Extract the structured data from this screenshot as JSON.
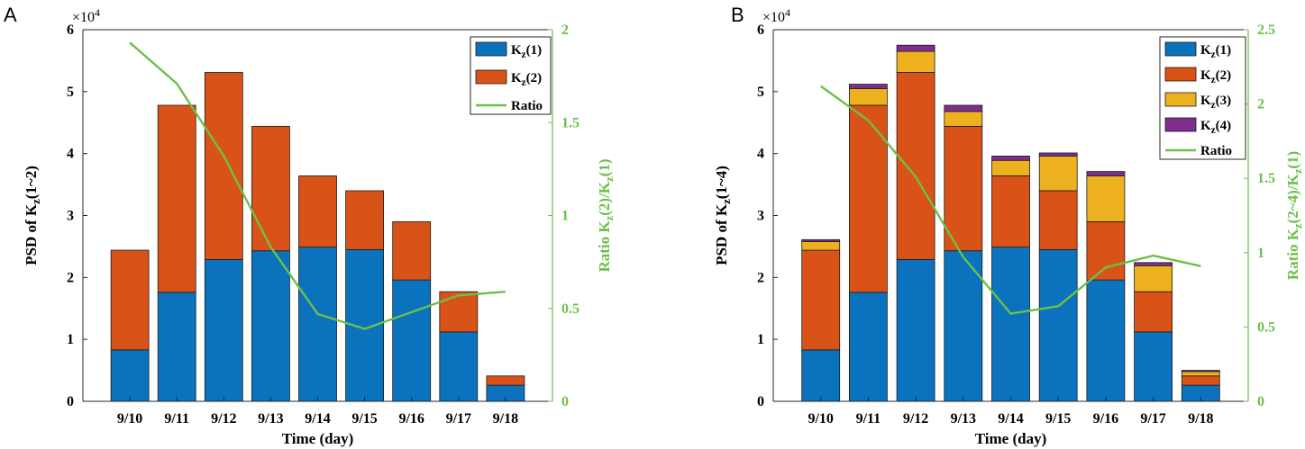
{
  "colors": {
    "k1": "#0b72bd",
    "k2": "#d95319",
    "k3": "#edb120",
    "k4": "#7e2f8e",
    "ratio": "#6cc04a"
  },
  "chart_data": [
    {
      "type": "bar",
      "stacked": true,
      "panel_label": "A",
      "categories": [
        "9/10",
        "9/11",
        "9/12",
        "9/13",
        "9/14",
        "9/15",
        "9/16",
        "9/17",
        "9/18"
      ],
      "xlabel": "Time (day)",
      "ylabel": "PSD of K_z(1~2)",
      "ylim": [
        0,
        6
      ],
      "yticks": [
        "0",
        "1",
        "2",
        "3",
        "4",
        "5",
        "6"
      ],
      "y_scale_label": "×10^4",
      "series": [
        {
          "name": "K_z(1)",
          "key": "k1",
          "values": [
            0.83,
            1.76,
            2.29,
            2.43,
            2.49,
            2.45,
            1.96,
            1.12,
            0.26
          ]
        },
        {
          "name": "K_z(2)",
          "key": "k2",
          "values": [
            1.61,
            3.02,
            3.02,
            2.01,
            1.15,
            0.95,
            0.94,
            0.65,
            0.15
          ]
        }
      ],
      "ratio": {
        "name": "Ratio",
        "ylabel": "Ratio K_z(2)/K_z(1)",
        "ylim": [
          0,
          2
        ],
        "yticks": [
          "0",
          "0.5",
          "1",
          "1.5",
          "2"
        ],
        "values": [
          1.93,
          1.71,
          1.32,
          0.83,
          0.47,
          0.39,
          0.48,
          0.57,
          0.59
        ]
      }
    },
    {
      "type": "bar",
      "stacked": true,
      "panel_label": "B",
      "categories": [
        "9/10",
        "9/11",
        "9/12",
        "9/13",
        "9/14",
        "9/15",
        "9/16",
        "9/17",
        "9/18"
      ],
      "xlabel": "Time (day)",
      "ylabel": "PSD of K_z(1~4)",
      "ylim": [
        0,
        6
      ],
      "yticks": [
        "0",
        "1",
        "2",
        "3",
        "4",
        "5",
        "6"
      ],
      "y_scale_label": "×10^4",
      "series": [
        {
          "name": "K_z(1)",
          "key": "k1",
          "values": [
            0.83,
            1.76,
            2.29,
            2.43,
            2.49,
            2.45,
            1.96,
            1.12,
            0.26
          ]
        },
        {
          "name": "K_z(2)",
          "key": "k2",
          "values": [
            1.61,
            3.02,
            3.02,
            2.01,
            1.15,
            0.95,
            0.94,
            0.65,
            0.15
          ]
        },
        {
          "name": "K_z(3)",
          "key": "k3",
          "values": [
            0.14,
            0.27,
            0.34,
            0.24,
            0.25,
            0.56,
            0.74,
            0.42,
            0.07
          ]
        },
        {
          "name": "K_z(4)",
          "key": "k4",
          "values": [
            0.03,
            0.07,
            0.1,
            0.1,
            0.07,
            0.05,
            0.07,
            0.05,
            0.02
          ]
        }
      ],
      "ratio": {
        "name": "Ratio",
        "ylabel": "Ratio K_z(2~4)/K_z(1)",
        "ylim": [
          0,
          2.5
        ],
        "yticks": [
          "0",
          "0.5",
          "1",
          "1.5",
          "2",
          "2.5"
        ],
        "values": [
          2.12,
          1.89,
          1.51,
          0.97,
          0.59,
          0.64,
          0.9,
          0.98,
          0.91
        ]
      }
    }
  ]
}
